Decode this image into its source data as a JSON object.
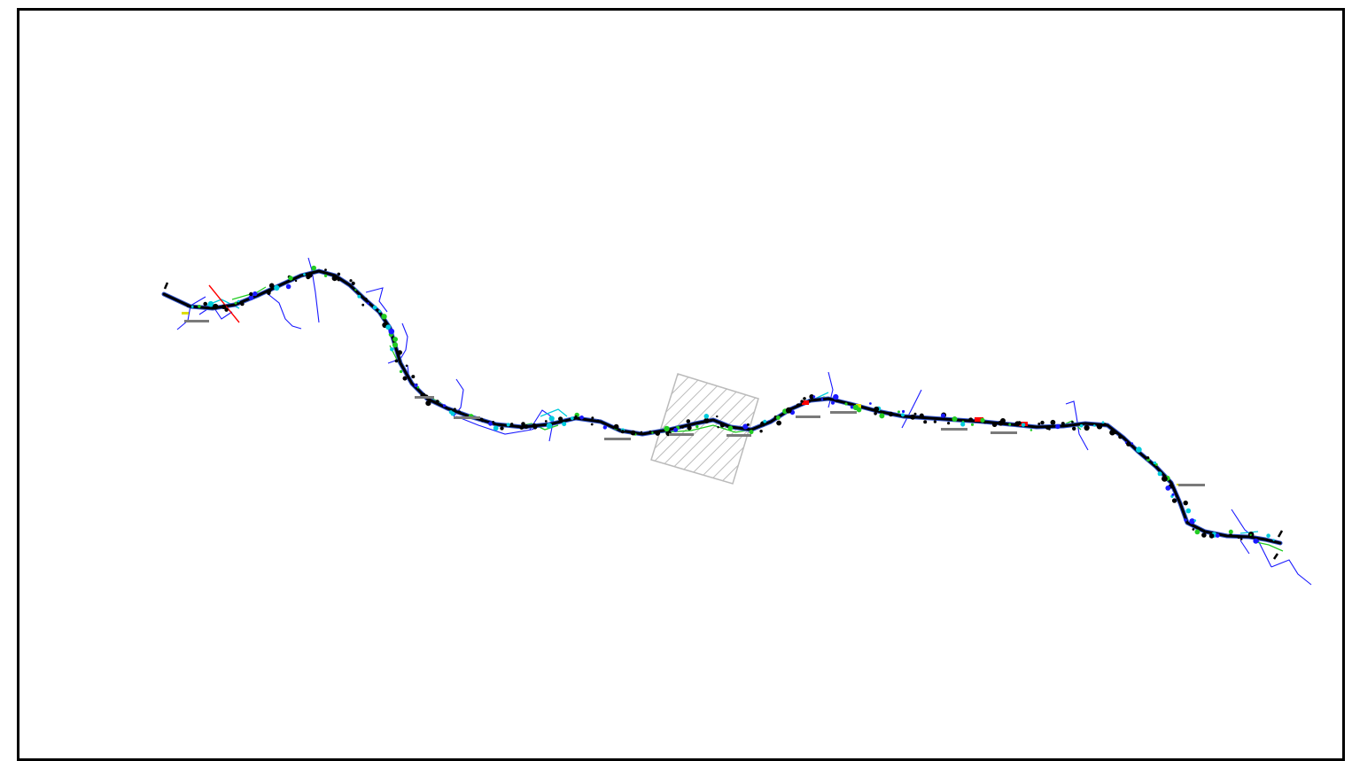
{
  "drawing": {
    "type": "route-plan-overview",
    "colors": {
      "background": "#ffffff",
      "frame": "#000000",
      "route": "#000000",
      "route_casing": "#3355cc",
      "drainage": "#1a1aff",
      "utility_green": "#22cc22",
      "utility_cyan": "#00ccdd",
      "accent_red": "#ff0000",
      "accent_yellow": "#dddd00",
      "label_bar": "#7a7a7a",
      "hatch": "#bbbbbb"
    },
    "layers": [
      "route",
      "drainage",
      "utilities",
      "markers",
      "labels",
      "hatch"
    ]
  }
}
